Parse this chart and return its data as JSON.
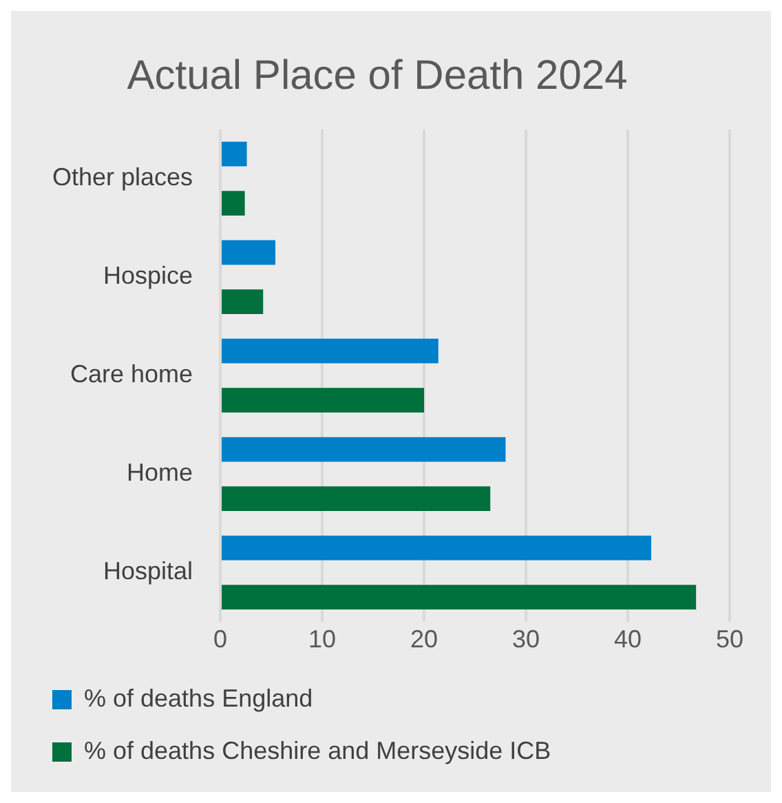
{
  "chart_data": {
    "type": "bar",
    "orientation": "horizontal",
    "title": "Actual Place of Death 2024",
    "categories": [
      "Other places",
      "Hospice",
      "Care home",
      "Home",
      "Hospital"
    ],
    "series": [
      {
        "name": "% of deaths England",
        "color": "#0080c8",
        "values": [
          2.6,
          5.4,
          21.4,
          28.0,
          42.3
        ]
      },
      {
        "name": "% of deaths Cheshire and Merseyside ICB",
        "color": "#00703c",
        "values": [
          2.4,
          4.2,
          20.0,
          26.5,
          46.7
        ]
      }
    ],
    "xlim": [
      0,
      50
    ],
    "xticks": [
      0,
      10,
      20,
      30,
      40,
      50
    ],
    "grid": "x",
    "legend": "bottom"
  }
}
